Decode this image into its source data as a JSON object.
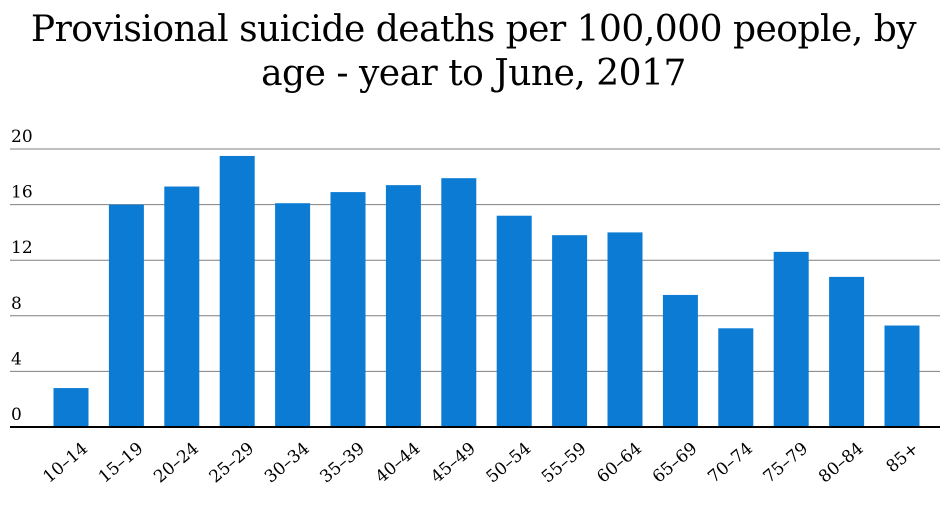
{
  "chart_data": {
    "type": "bar",
    "title": "Provisional suicide deaths per 100,000 people, by age - year to June, 2017",
    "categories": [
      "10–14",
      "15–19",
      "20–24",
      "25–29",
      "30–34",
      "35–39",
      "40–44",
      "45–49",
      "50–54",
      "55–59",
      "60–64",
      "65–69",
      "70–74",
      "75–79",
      "80–84",
      "85+"
    ],
    "values": [
      2.8,
      16.0,
      17.3,
      19.5,
      16.1,
      16.9,
      17.4,
      17.9,
      15.2,
      13.8,
      14.0,
      9.5,
      7.1,
      12.6,
      10.8,
      7.3
    ],
    "yticks": [
      "0",
      "4",
      "8",
      "12",
      "16",
      "20"
    ],
    "ylim": [
      0,
      20
    ],
    "xlabel": "",
    "ylabel": "",
    "grid": true,
    "colors": {
      "bar": "#0b7bd3",
      "grid": "#7f7f7f",
      "axis": "#000000"
    }
  }
}
